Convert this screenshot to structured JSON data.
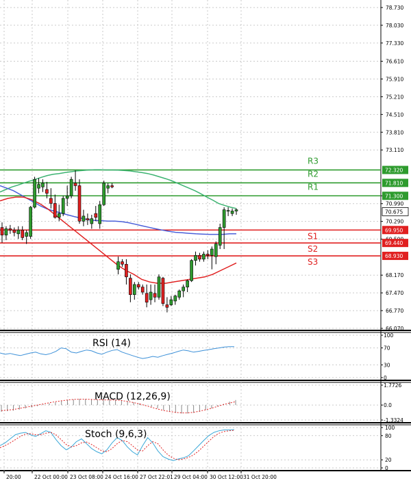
{
  "chart_data": [
    {
      "type": "candlestick",
      "panel": "price",
      "instrument_note": "",
      "ylim": [
        66.07,
        79.0
      ],
      "price_ticks": [
        "78.730",
        "78.030",
        "77.330",
        "76.610",
        "75.910",
        "75.210",
        "74.510",
        "73.810",
        "73.110",
        "71.300",
        "70.990",
        "70.290",
        "69.590",
        "68.170",
        "67.470",
        "66.770",
        "66.070"
      ],
      "price_tick_values": [
        78.73,
        78.03,
        77.33,
        76.61,
        75.91,
        75.21,
        74.51,
        73.81,
        73.11,
        71.3,
        70.99,
        70.29,
        69.59,
        68.17,
        67.47,
        66.77,
        66.07
      ],
      "x_labels": [
        "20:00",
        "22 Oct 00:00",
        "23 Oct 08:00",
        "24 Oct 16:00",
        "27 Oct 22:01",
        "29 Oct 04:00",
        "30 Oct 12:00",
        "31 Oct 20:00"
      ],
      "x_label_index": [
        0,
        7,
        17,
        26,
        35,
        44,
        53,
        62
      ],
      "current_price": {
        "label": "70.675",
        "value": 70.675
      },
      "levels": [
        {
          "name": "R3",
          "label": "72.320",
          "value": 72.32,
          "color": "#2e9b2e"
        },
        {
          "name": "R2",
          "label": "71.810",
          "value": 71.81,
          "color": "#2e9b2e"
        },
        {
          "name": "R1",
          "label": "71.300",
          "value": 71.3,
          "color": "#2e9b2e"
        },
        {
          "name": "S1",
          "label": "69.950",
          "value": 69.95,
          "color": "#e02020"
        },
        {
          "name": "S2",
          "label": "69.440",
          "value": 69.44,
          "color": "#e02020"
        },
        {
          "name": "S3",
          "label": "68.930",
          "value": 68.93,
          "color": "#e02020"
        }
      ],
      "candles": [
        [
          70.05,
          70.25,
          69.45,
          69.75
        ],
        [
          69.75,
          70.1,
          69.55,
          70.0
        ],
        [
          70.0,
          70.15,
          69.8,
          69.95
        ],
        [
          69.95,
          70.05,
          69.7,
          69.85
        ],
        [
          69.8,
          70.1,
          69.6,
          69.95
        ],
        [
          69.95,
          70.1,
          69.55,
          69.65
        ],
        [
          69.7,
          69.95,
          69.4,
          69.85
        ],
        [
          69.7,
          70.9,
          69.6,
          70.85
        ],
        [
          70.85,
          72.05,
          70.8,
          71.95
        ],
        [
          71.6,
          72.0,
          71.4,
          71.75
        ],
        [
          71.65,
          71.95,
          71.45,
          71.8
        ],
        [
          71.55,
          71.85,
          71.2,
          71.4
        ],
        [
          71.2,
          71.6,
          70.8,
          71.0
        ],
        [
          71.0,
          71.35,
          70.4,
          70.45
        ],
        [
          70.45,
          70.95,
          70.3,
          70.6
        ],
        [
          70.6,
          71.3,
          70.5,
          71.2
        ],
        [
          71.2,
          71.7,
          70.9,
          71.3
        ],
        [
          71.3,
          72.05,
          71.2,
          71.95
        ],
        [
          71.8,
          72.3,
          71.5,
          71.7
        ],
        [
          71.7,
          71.95,
          70.2,
          70.3
        ],
        [
          70.3,
          70.75,
          70.1,
          70.5
        ],
        [
          70.4,
          70.6,
          70.15,
          70.35
        ],
        [
          70.2,
          70.55,
          70.0,
          70.4
        ],
        [
          70.6,
          70.9,
          70.3,
          70.45
        ],
        [
          70.2,
          71.1,
          70.0,
          70.95
        ],
        [
          70.95,
          71.9,
          70.9,
          71.8
        ],
        [
          71.6,
          71.8,
          71.4,
          71.7
        ],
        [
          71.7,
          71.8,
          71.6,
          71.65
        ],
        [
          68.4,
          68.9,
          68.2,
          68.7
        ],
        [
          68.7,
          68.8,
          68.5,
          68.6
        ],
        [
          68.6,
          68.8,
          67.8,
          68.1
        ],
        [
          68.05,
          68.2,
          67.1,
          67.4
        ],
        [
          67.4,
          67.9,
          67.2,
          67.8
        ],
        [
          67.8,
          67.9,
          67.6,
          67.7
        ],
        [
          67.7,
          67.8,
          67.4,
          67.5
        ],
        [
          67.45,
          67.8,
          66.9,
          67.1
        ],
        [
          67.2,
          67.8,
          67.0,
          67.5
        ],
        [
          67.45,
          67.8,
          67.1,
          67.3
        ],
        [
          67.3,
          68.2,
          67.2,
          68.1
        ],
        [
          68.05,
          68.1,
          66.95,
          67.05
        ],
        [
          67.0,
          67.3,
          66.7,
          66.9
        ],
        [
          67.0,
          67.35,
          66.95,
          67.2
        ],
        [
          67.15,
          67.4,
          67.0,
          67.35
        ],
        [
          67.3,
          67.6,
          67.2,
          67.55
        ],
        [
          67.55,
          67.8,
          67.3,
          67.7
        ],
        [
          67.7,
          68.0,
          67.5,
          67.95
        ],
        [
          67.95,
          68.8,
          67.9,
          68.75
        ],
        [
          68.75,
          69.1,
          68.55,
          68.95
        ],
        [
          68.95,
          69.05,
          68.7,
          68.8
        ],
        [
          68.8,
          69.1,
          68.7,
          69.0
        ],
        [
          69.0,
          69.15,
          68.8,
          68.95
        ],
        [
          68.95,
          69.3,
          68.4,
          69.2
        ],
        [
          68.9,
          69.5,
          68.6,
          69.4
        ],
        [
          69.35,
          70.2,
          69.2,
          70.05
        ],
        [
          70.05,
          70.85,
          69.2,
          70.75
        ],
        [
          70.7,
          70.85,
          70.5,
          70.72
        ],
        [
          70.6,
          70.8,
          70.5,
          70.7
        ],
        [
          70.7,
          70.8,
          70.55,
          70.75
        ]
      ],
      "ema_green": [
        71.45,
        71.55,
        71.65,
        71.72,
        71.8,
        71.88,
        71.95,
        72.03,
        72.1,
        72.15,
        72.18,
        72.22,
        72.25,
        72.28,
        72.3,
        72.32,
        72.33,
        72.33,
        72.32,
        72.32,
        72.31,
        72.3,
        72.28,
        72.25,
        72.22,
        72.18,
        72.12,
        72.05,
        71.98,
        71.9,
        71.8,
        71.7,
        71.6,
        71.5,
        71.38,
        71.25,
        71.13,
        71.0,
        70.92,
        70.85,
        70.8
      ],
      "ema_blue": [
        71.7,
        71.6,
        71.5,
        71.35,
        71.2,
        71.05,
        70.9,
        70.78,
        70.7,
        70.62,
        70.55,
        70.48,
        70.42,
        70.36,
        70.33,
        70.32,
        70.3,
        70.3,
        70.28,
        70.24,
        70.18,
        70.12,
        70.06,
        70.0,
        69.95,
        69.9,
        69.86,
        69.84,
        69.82,
        69.8,
        69.79,
        69.78,
        69.78,
        69.78,
        69.8,
        69.8
      ],
      "ema_red": [
        71.1,
        71.2,
        71.25,
        71.25,
        71.15,
        71.0,
        70.8,
        70.55,
        70.3,
        70.05,
        69.8,
        69.55,
        69.3,
        69.05,
        68.8,
        68.55,
        68.35,
        68.2,
        68.0,
        67.9,
        67.85,
        67.85,
        67.9,
        67.95,
        68.0,
        68.05,
        68.1,
        68.2,
        68.35,
        68.5,
        68.65
      ],
      "line_colors": {
        "ema_slow": "#3cb371",
        "ema_mid": "#4a5fd9",
        "ema_fast": "#e02020"
      }
    },
    {
      "type": "line",
      "panel": "RSI",
      "title": "RSI (14)",
      "ticks": [
        "100",
        "70",
        "30",
        "0"
      ],
      "tick_values": [
        100,
        70,
        30,
        0
      ],
      "ylim": [
        0,
        100
      ],
      "values": [
        58,
        55,
        57,
        54,
        52,
        55,
        58,
        60,
        56,
        54,
        57,
        62,
        70,
        68,
        60,
        58,
        62,
        65,
        63,
        58,
        55,
        60,
        64,
        66,
        60,
        56,
        52,
        48,
        45,
        47,
        50,
        48,
        52,
        55,
        58,
        62,
        65,
        63,
        60,
        62,
        64,
        66,
        68,
        70,
        72,
        73,
        73
      ]
    },
    {
      "type": "bar",
      "panel": "MACD",
      "title": "MACD (12,26,9)",
      "ticks": [
        "1.7726",
        "0.0",
        "-1.3324"
      ],
      "tick_values": [
        1.7726,
        0.0,
        -1.3324
      ],
      "ylim": [
        -1.3324,
        1.7726
      ],
      "histogram": [
        -0.6,
        -0.55,
        -0.5,
        -0.4,
        -0.3,
        -0.2,
        -0.1,
        0.05,
        0.15,
        0.25,
        0.35,
        0.45,
        0.5,
        0.55,
        0.55,
        0.5,
        0.45,
        0.45,
        0.5,
        0.5,
        0.45,
        0.35,
        0.25,
        0.15,
        0.0,
        -0.15,
        -0.3,
        -0.45,
        -0.6,
        -0.7,
        -0.75,
        -0.75,
        -0.7,
        -0.6,
        -0.45,
        -0.3,
        -0.1,
        0.1,
        0.3,
        0.45
      ],
      "signal": [
        -0.5,
        -0.45,
        -0.4,
        -0.3,
        -0.2,
        -0.1,
        0.0,
        0.1,
        0.2,
        0.3,
        0.38,
        0.45,
        0.5,
        0.52,
        0.52,
        0.5,
        0.48,
        0.46,
        0.45,
        0.44,
        0.4,
        0.32,
        0.22,
        0.1,
        -0.05,
        -0.2,
        -0.35,
        -0.48,
        -0.58,
        -0.65,
        -0.7,
        -0.7,
        -0.65,
        -0.55,
        -0.42,
        -0.28,
        -0.12,
        0.05,
        0.18,
        0.3
      ]
    },
    {
      "type": "line",
      "panel": "Stoch",
      "title": "Stoch (9,6,3)",
      "ticks": [
        "100",
        "80",
        "20",
        "0"
      ],
      "tick_values": [
        100,
        80,
        20,
        0
      ],
      "ylim": [
        0,
        100
      ],
      "k_line": [
        55,
        62,
        72,
        82,
        86,
        88,
        82,
        78,
        85,
        92,
        88,
        70,
        55,
        45,
        52,
        65,
        72,
        60,
        48,
        40,
        35,
        45,
        62,
        75,
        68,
        52,
        40,
        32,
        55,
        75,
        62,
        42,
        28,
        22,
        18,
        22,
        25,
        30,
        42,
        55,
        68,
        80,
        88,
        92,
        94,
        94,
        95
      ],
      "d_line": [
        50,
        55,
        62,
        70,
        78,
        84,
        85,
        82,
        82,
        86,
        88,
        82,
        70,
        58,
        52,
        55,
        62,
        64,
        58,
        50,
        42,
        40,
        48,
        60,
        68,
        65,
        55,
        44,
        42,
        55,
        65,
        60,
        45,
        32,
        24,
        20,
        22,
        26,
        32,
        42,
        54,
        66,
        78,
        86,
        90,
        92,
        93
      ]
    }
  ],
  "colors": {
    "up_body": "#2e9b2e",
    "down_body": "#e02020",
    "wick": "#000000",
    "stoch_k": "#3aa8d8",
    "stoch_d": "#e02020",
    "rsi_line": "#3a8fd8"
  }
}
